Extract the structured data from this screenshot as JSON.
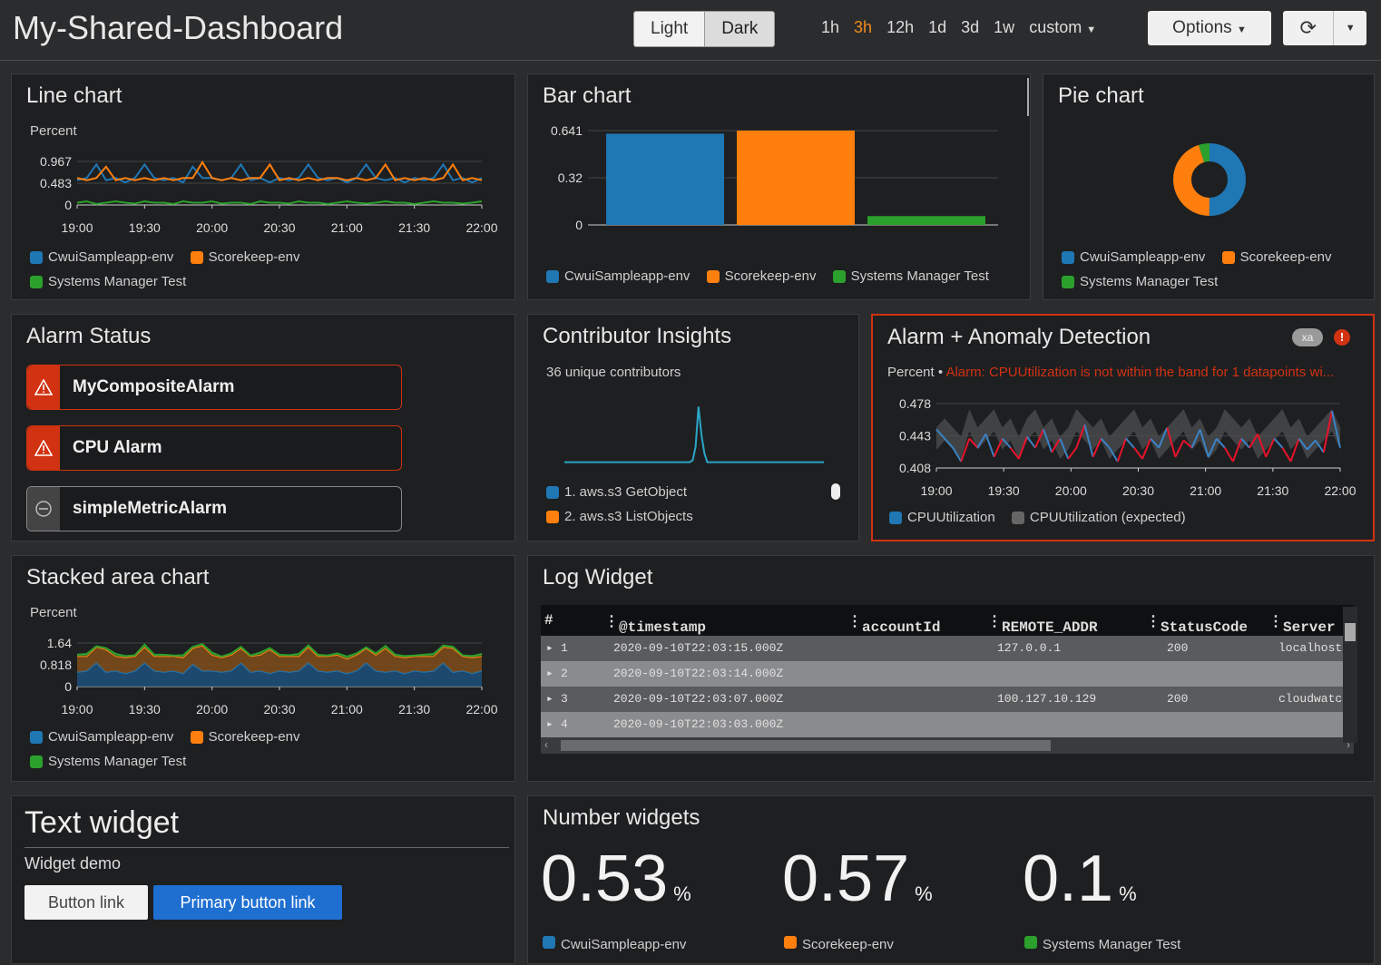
{
  "header": {
    "title": "My-Shared-Dashboard",
    "theme_light": "Light",
    "theme_dark": "Dark",
    "ranges": [
      "1h",
      "3h",
      "12h",
      "1d",
      "3d",
      "1w"
    ],
    "active_range": "3h",
    "custom": "custom",
    "options": "Options",
    "refresh_icon": "refresh-icon"
  },
  "colors": {
    "blue": "#1f77b4",
    "orange": "#ff7f0e",
    "green": "#2ca02c",
    "alarm": "#d13212",
    "primary": "#1f6fd1"
  },
  "series_names": [
    "CwuiSampleapp-env",
    "Scorekeep-env",
    "Systems Manager Test"
  ],
  "line_widget": {
    "title": "Line chart",
    "unit": "Percent"
  },
  "bar_widget": {
    "title": "Bar chart"
  },
  "pie_widget": {
    "title": "Pie chart"
  },
  "alarm_status": {
    "title": "Alarm Status",
    "alarms": [
      {
        "name": "MyCompositeAlarm",
        "state": "alarm",
        "icon": "warning-icon"
      },
      {
        "name": "CPU Alarm",
        "state": "alarm",
        "icon": "warning-icon"
      },
      {
        "name": "simpleMetricAlarm",
        "state": "insufficient",
        "icon": "minus-circle-icon"
      }
    ]
  },
  "contributor": {
    "title": "Contributor Insights",
    "subtitle": "36 unique contributors",
    "legend": [
      "1. aws.s3 GetObject",
      "2. aws.s3 ListObjects"
    ]
  },
  "anomaly": {
    "title": "Alarm + Anomaly Detection",
    "badge": "xa",
    "unit": "Percent",
    "message": "Alarm: CPUUtilization is not within the band for 1 datapoints wi...",
    "legend": [
      "CPUUtilization",
      "CPUUtilization (expected)"
    ]
  },
  "stacked_widget": {
    "title": "Stacked area chart",
    "unit": "Percent"
  },
  "log_widget": {
    "title": "Log Widget",
    "columns": [
      "#",
      "@timestamp",
      "accountId",
      "REMOTE_ADDR",
      "StatusCode",
      "Server"
    ],
    "rows": [
      {
        "n": "1",
        "ts": "2020-09-10T22:03:15.000Z",
        "acct": "",
        "addr": "127.0.0.1",
        "code": "200",
        "server": "localhost"
      },
      {
        "n": "2",
        "ts": "2020-09-10T22:03:14.000Z",
        "acct": "",
        "addr": "",
        "code": "",
        "server": ""
      },
      {
        "n": "3",
        "ts": "2020-09-10T22:03:07.000Z",
        "acct": "",
        "addr": "100.127.10.129",
        "code": "200",
        "server": "cloudwatc"
      },
      {
        "n": "4",
        "ts": "2020-09-10T22:03:03.000Z",
        "acct": "",
        "addr": "",
        "code": "",
        "server": ""
      }
    ]
  },
  "text_widget": {
    "title": "Text widget",
    "subtitle": "Widget demo",
    "button": "Button link",
    "primary_button": "Primary button link"
  },
  "number_widget": {
    "title": "Number widgets",
    "items": [
      {
        "value": "0.53",
        "unit": "%",
        "label": "CwuiSampleapp-env",
        "color": "#1f77b4"
      },
      {
        "value": "0.57",
        "unit": "%",
        "label": "Scorekeep-env",
        "color": "#ff7f0e"
      },
      {
        "value": "0.1",
        "unit": "%",
        "label": "Systems Manager Test",
        "color": "#2ca02c"
      }
    ]
  },
  "chart_data": [
    {
      "id": "line",
      "type": "line",
      "ylabel": "Percent",
      "ylim": [
        0,
        0.967
      ],
      "yticks": [
        "0.967",
        "0.483",
        "0"
      ],
      "xticks": [
        "19:00",
        "19:30",
        "20:00",
        "20:30",
        "21:00",
        "21:30",
        "22:00"
      ],
      "series": [
        {
          "name": "CwuiSampleapp-env",
          "values": [
            0.55,
            0.6,
            0.9,
            0.55,
            0.6,
            0.5,
            0.6,
            0.9,
            0.6,
            0.55,
            0.6,
            0.5,
            0.85,
            0.6,
            0.6,
            0.55,
            0.6,
            0.9,
            0.55,
            0.6,
            0.5,
            0.6,
            0.55,
            0.6,
            0.9,
            0.6,
            0.55,
            0.6,
            0.5,
            0.6,
            0.9,
            0.6,
            0.55,
            0.6,
            0.5,
            0.6,
            0.55,
            0.6,
            0.9,
            0.55,
            0.6,
            0.5,
            0.6
          ]
        },
        {
          "name": "Scorekeep-env",
          "values": [
            0.6,
            0.55,
            0.6,
            0.85,
            0.55,
            0.6,
            0.55,
            0.6,
            0.55,
            0.6,
            0.55,
            0.6,
            0.6,
            0.95,
            0.6,
            0.55,
            0.6,
            0.55,
            0.6,
            0.6,
            0.9,
            0.55,
            0.6,
            0.55,
            0.6,
            0.55,
            0.6,
            0.6,
            0.55,
            0.6,
            0.55,
            0.6,
            0.9,
            0.55,
            0.6,
            0.55,
            0.6,
            0.55,
            0.6,
            0.9,
            0.55,
            0.6,
            0.55
          ]
        },
        {
          "name": "Systems Manager Test",
          "values": [
            0.05,
            0.08,
            0.02,
            0.05,
            0.08,
            0.05,
            0.03,
            0.08,
            0.05,
            0.05,
            0.02,
            0.08,
            0.05,
            0.05,
            0.08,
            0.03,
            0.05,
            0.05,
            0.02,
            0.08,
            0.05,
            0.05,
            0.03,
            0.08,
            0.05,
            0.05,
            0.02,
            0.05,
            0.08,
            0.05,
            0.03,
            0.05,
            0.08,
            0.05,
            0.05,
            0.02,
            0.05,
            0.08,
            0.05,
            0.05,
            0.03,
            0.05,
            0.08
          ]
        }
      ]
    },
    {
      "id": "bar",
      "type": "bar",
      "ylim": [
        0,
        0.641
      ],
      "yticks": [
        "0.641",
        "0.32",
        "0"
      ],
      "categories": [
        "CwuiSampleapp-env",
        "Scorekeep-env",
        "Systems Manager Test"
      ],
      "values": [
        0.62,
        0.641,
        0.06
      ]
    },
    {
      "id": "pie",
      "type": "pie",
      "categories": [
        "CwuiSampleapp-env",
        "Scorekeep-env",
        "Systems Manager Test"
      ],
      "values": [
        0.5,
        0.45,
        0.05
      ]
    },
    {
      "id": "contrib",
      "type": "line",
      "series": [
        {
          "name": "1. aws.s3 GetObject",
          "values": [
            0.05,
            0.05,
            0.05,
            0.05,
            0.05,
            0.05,
            0.05,
            0.05,
            0.05,
            0.05,
            0.05,
            0.05,
            0.05,
            0.05,
            0.05,
            0.05,
            0.05,
            0.05,
            0.05,
            0.05,
            0.05,
            0.05,
            0.05,
            0.05,
            0.05,
            0.05,
            0.05,
            0.05,
            0.05,
            0.05,
            0.05,
            0.05,
            0.05,
            0.05,
            0.05,
            0.05,
            0.05,
            0.05,
            0.05,
            0.05,
            0.05,
            0.05,
            0.05,
            0.05,
            0.08,
            0.3,
            0.95,
            0.5,
            0.2,
            0.05,
            0.05,
            0.05,
            0.05,
            0.05,
            0.05,
            0.05,
            0.05,
            0.05,
            0.05,
            0.05,
            0.05,
            0.05,
            0.05,
            0.05,
            0.05,
            0.05,
            0.05,
            0.05,
            0.05,
            0.05,
            0.05,
            0.05,
            0.05,
            0.05,
            0.05,
            0.05,
            0.05,
            0.05,
            0.05,
            0.05,
            0.05,
            0.05,
            0.05,
            0.05,
            0.05,
            0.05,
            0.05,
            0.05,
            0.05,
            0.05
          ]
        }
      ]
    },
    {
      "id": "anomaly",
      "type": "line",
      "ylabel": "Percent",
      "ylim": [
        0.408,
        0.478
      ],
      "yticks": [
        "0.478",
        "0.443",
        "0.408"
      ],
      "xticks": [
        "19:00",
        "19:30",
        "20:00",
        "20:30",
        "21:00",
        "21:30",
        "22:00"
      ],
      "series": [
        {
          "name": "CPUUtilization",
          "values": [
            0.45,
            0.44,
            0.43,
            0.415,
            0.44,
            0.43,
            0.445,
            0.42,
            0.44,
            0.43,
            0.418,
            0.442,
            0.43,
            0.45,
            0.425,
            0.44,
            0.418,
            0.43,
            0.455,
            0.42,
            0.44,
            0.43,
            0.415,
            0.44,
            0.43,
            0.418,
            0.44,
            0.43,
            0.452,
            0.42,
            0.438,
            0.43,
            0.45,
            0.42,
            0.44,
            0.43,
            0.415,
            0.44,
            0.43,
            0.445,
            0.42,
            0.44,
            0.43,
            0.415,
            0.44,
            0.428,
            0.438,
            0.425,
            0.47,
            0.43
          ]
        },
        {
          "name": "CPUUtilization (expected)",
          "band": true,
          "values": [
            0.44,
            0.45,
            0.44,
            0.43,
            0.46,
            0.44,
            0.45,
            0.46,
            0.44,
            0.45,
            0.43,
            0.45,
            0.46,
            0.44,
            0.45,
            0.43,
            0.44,
            0.46,
            0.45,
            0.44,
            0.45,
            0.43,
            0.44,
            0.45,
            0.46,
            0.44,
            0.45,
            0.43,
            0.44,
            0.45,
            0.46,
            0.44,
            0.45,
            0.43,
            0.44,
            0.46,
            0.45,
            0.44,
            0.45,
            0.43,
            0.44,
            0.45,
            0.46,
            0.44,
            0.45,
            0.43,
            0.44,
            0.45,
            0.46,
            0.44
          ]
        }
      ]
    },
    {
      "id": "stacked",
      "type": "area",
      "ylabel": "Percent",
      "ylim": [
        0,
        1.64
      ],
      "yticks": [
        "1.64",
        "0.818",
        "0"
      ],
      "xticks": [
        "19:00",
        "19:30",
        "20:00",
        "20:30",
        "21:00",
        "21:30",
        "22:00"
      ],
      "series": [
        {
          "name": "CwuiSampleapp-env",
          "values": [
            0.55,
            0.6,
            0.9,
            0.55,
            0.6,
            0.5,
            0.6,
            0.9,
            0.6,
            0.55,
            0.6,
            0.5,
            0.85,
            0.6,
            0.6,
            0.55,
            0.6,
            0.9,
            0.55,
            0.6,
            0.5,
            0.6,
            0.55,
            0.6,
            0.9,
            0.6,
            0.55,
            0.6,
            0.5,
            0.6,
            0.9,
            0.6,
            0.55,
            0.6,
            0.5,
            0.6,
            0.55,
            0.6,
            0.9,
            0.55,
            0.6,
            0.5,
            0.6
          ]
        },
        {
          "name": "Scorekeep-env",
          "values": [
            0.6,
            0.55,
            0.6,
            0.85,
            0.55,
            0.6,
            0.55,
            0.6,
            0.55,
            0.6,
            0.55,
            0.6,
            0.6,
            0.95,
            0.6,
            0.55,
            0.6,
            0.55,
            0.6,
            0.6,
            0.9,
            0.55,
            0.6,
            0.55,
            0.6,
            0.55,
            0.6,
            0.6,
            0.55,
            0.6,
            0.55,
            0.6,
            0.9,
            0.55,
            0.6,
            0.55,
            0.6,
            0.55,
            0.6,
            0.9,
            0.55,
            0.6,
            0.55
          ]
        },
        {
          "name": "Systems Manager Test",
          "values": [
            0.05,
            0.08,
            0.02,
            0.05,
            0.08,
            0.05,
            0.03,
            0.08,
            0.05,
            0.05,
            0.02,
            0.08,
            0.05,
            0.05,
            0.08,
            0.03,
            0.05,
            0.05,
            0.02,
            0.08,
            0.05,
            0.05,
            0.03,
            0.08,
            0.05,
            0.05,
            0.02,
            0.05,
            0.08,
            0.05,
            0.03,
            0.05,
            0.08,
            0.05,
            0.05,
            0.02,
            0.05,
            0.08,
            0.05,
            0.05,
            0.03,
            0.05,
            0.08
          ]
        }
      ]
    }
  ]
}
